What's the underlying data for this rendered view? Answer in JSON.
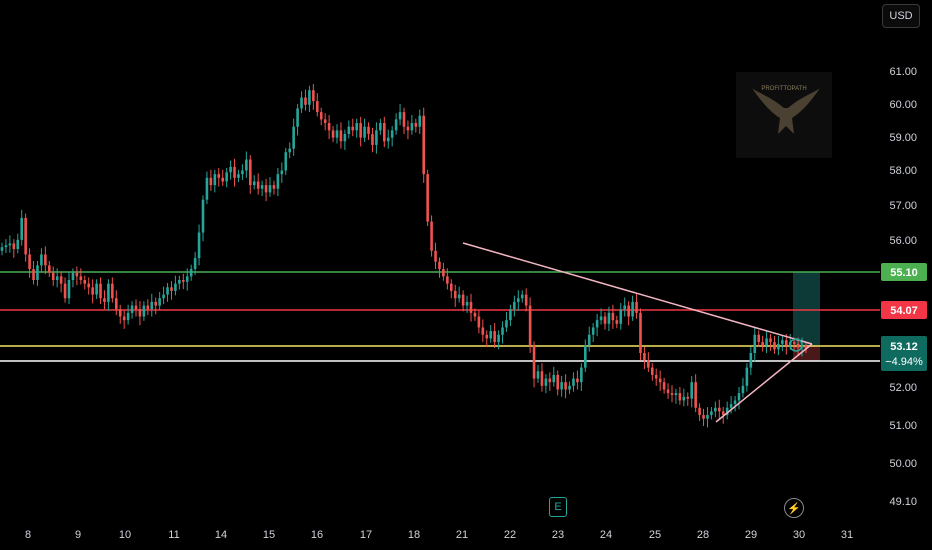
{
  "toolbar": {
    "currency": "USD"
  },
  "watermark": {
    "text": "PROFITTOPATH"
  },
  "badges": {
    "earnings": "E",
    "flash": "⚡"
  },
  "colors": {
    "up": "#26a69a",
    "down": "#ef5350",
    "green_line": "#4caf50",
    "red_line": "#f23645",
    "yellow_line": "#f5e663",
    "white_line": "#ffffff",
    "trend": "#f4b6c2"
  },
  "chart_data": {
    "type": "candlestick",
    "x_tick_labels": [
      "8",
      "9",
      "10",
      "11",
      "14",
      "15",
      "16",
      "17",
      "18",
      "21",
      "22",
      "23",
      "24",
      "25",
      "28",
      "29",
      "30",
      "31"
    ],
    "y_tick_labels": [
      "61.00",
      "60.00",
      "59.00",
      "58.00",
      "57.00",
      "56.00",
      "52.00",
      "51.00",
      "50.00",
      "49.10"
    ],
    "ylim": [
      48.8,
      61.4
    ],
    "levels": [
      {
        "value": 55.1,
        "label": "55.10",
        "color": "#4caf50"
      },
      {
        "value": 54.07,
        "label": "54.07",
        "color": "#f23645"
      },
      {
        "value": 53.12,
        "label": "53.12",
        "color": "#f5e663"
      }
    ],
    "white_level": 52.72,
    "current_change": "−4.94%",
    "close_series": [
      55.9,
      55.95,
      56.0,
      55.85,
      56.1,
      56.7,
      55.7,
      55.3,
      55.0,
      55.4,
      55.7,
      55.4,
      55.2,
      55.0,
      55.1,
      54.9,
      54.5,
      55.0,
      55.2,
      55.1,
      55.0,
      54.9,
      54.8,
      54.6,
      54.9,
      54.5,
      54.4,
      54.9,
      54.5,
      54.2,
      54.0,
      53.9,
      54.1,
      54.3,
      54.2,
      54.0,
      54.3,
      54.2,
      54.4,
      54.3,
      54.5,
      54.6,
      54.8,
      54.7,
      54.9,
      55.0,
      54.95,
      55.1,
      55.3,
      55.6,
      56.3,
      57.2,
      57.8,
      57.6,
      57.9,
      57.8,
      57.7,
      57.95,
      58.1,
      57.8,
      57.9,
      58.0,
      58.3,
      57.6,
      57.7,
      57.5,
      57.6,
      57.4,
      57.6,
      57.5,
      57.9,
      58.0,
      58.5,
      58.6,
      59.2,
      59.7,
      60.0,
      59.8,
      60.2,
      59.9,
      59.6,
      59.4,
      59.3,
      59.1,
      58.9,
      59.1,
      58.8,
      59.0,
      59.2,
      59.1,
      59.3,
      58.9,
      59.2,
      59.0,
      58.7,
      59.1,
      59.3,
      58.8,
      58.9,
      59.1,
      59.4,
      59.6,
      59.2,
      59.1,
      59.3,
      59.2,
      59.5,
      57.9,
      56.6,
      55.8,
      55.5,
      55.3,
      55.1,
      54.9,
      54.7,
      54.5,
      54.6,
      54.3,
      54.4,
      54.1,
      54.0,
      53.7,
      53.5,
      53.4,
      53.6,
      53.3,
      53.5,
      53.7,
      53.9,
      54.2,
      54.4,
      54.5,
      54.6,
      54.3,
      53.2,
      52.3,
      52.5,
      52.1,
      52.3,
      52.2,
      52.4,
      52.0,
      52.2,
      52.0,
      52.1,
      52.3,
      52.2,
      52.6,
      53.2,
      53.5,
      53.7,
      53.9,
      54.0,
      53.8,
      54.1,
      53.9,
      53.8,
      54.2,
      54.3,
      54.0,
      54.4,
      54.1,
      53.0,
      52.8,
      52.6,
      52.4,
      52.3,
      52.2,
      52.0,
      51.9,
      51.85,
      51.9,
      51.7,
      51.8,
      51.75,
      52.2,
      51.5,
      51.3,
      51.2,
      51.3,
      51.4,
      51.5,
      51.4,
      51.3,
      51.5,
      51.6,
      51.7,
      51.9,
      52.1,
      52.6,
      53.0,
      53.5,
      53.3,
      53.2,
      53.4,
      53.3,
      53.1,
      53.25,
      53.35,
      53.2,
      53.3,
      53.25,
      53.15,
      53.2,
      53.12
    ],
    "trendlines": [
      {
        "from": {
          "day": "21",
          "value": 55.95
        },
        "to": {
          "day": "30",
          "value": 53.12
        }
      },
      {
        "from": {
          "day": "28",
          "value": 51.15
        },
        "to": {
          "day": "30",
          "value": 53.12
        }
      }
    ]
  }
}
